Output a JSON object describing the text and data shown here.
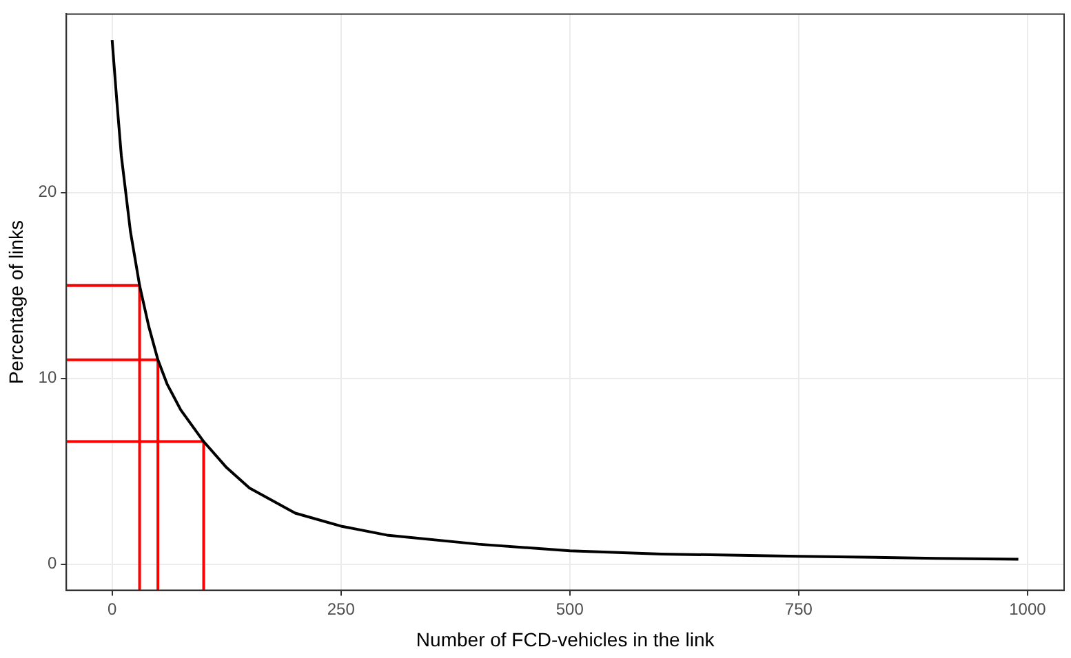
{
  "chart_data": {
    "type": "line",
    "xlabel": "Number of FCD-vehicles in the link",
    "ylabel": "Percentage of links",
    "xlim": [
      -50,
      1040
    ],
    "ylim": [
      -1.4,
      29.6
    ],
    "xticks": [
      0,
      250,
      500,
      750,
      1000
    ],
    "yticks": [
      0,
      10,
      20
    ],
    "grid": true,
    "legend": false,
    "marker": "none",
    "line_style": "solid",
    "series": [
      {
        "color": "#000000",
        "x": [
          0,
          5,
          10,
          20,
          30,
          40,
          50,
          60,
          75,
          100,
          125,
          150,
          200,
          250,
          300,
          400,
          500,
          600,
          750,
          900,
          990
        ],
        "values": [
          28.2,
          25,
          22,
          17.9,
          15,
          12.8,
          11,
          9.7,
          8.3,
          6.6,
          5.2,
          4.1,
          2.75,
          2.05,
          1.57,
          1.08,
          0.72,
          0.55,
          0.43,
          0.32,
          0.27
        ]
      },
      {
        "color": "#ff0000",
        "x": [
          -50,
          30,
          30
        ],
        "values": [
          15,
          15,
          -1.4
        ]
      },
      {
        "color": "#ff0000",
        "x": [
          -50,
          50,
          50
        ],
        "values": [
          11,
          11,
          -1.4
        ]
      },
      {
        "color": "#ff0000",
        "x": [
          -50,
          100,
          100
        ],
        "values": [
          6.6,
          6.6,
          -1.4
        ]
      }
    ]
  }
}
